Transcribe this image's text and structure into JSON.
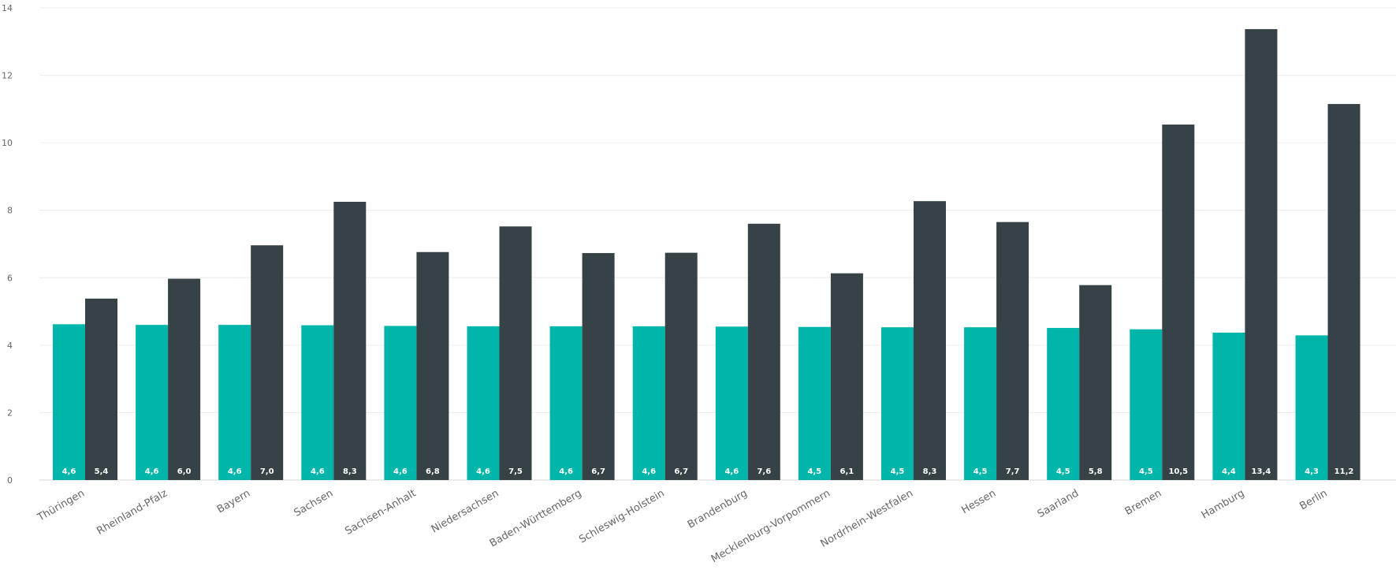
{
  "chart_data": {
    "type": "bar",
    "title": "",
    "xlabel": "",
    "ylabel": "",
    "ylim": [
      0,
      14
    ],
    "yticks": [
      "0",
      "2",
      "4",
      "6",
      "8",
      "10",
      "12",
      "14"
    ],
    "grid": true,
    "legend": "none",
    "categories": [
      "Thüringen",
      "Rheinland-Pfalz",
      "Bayern",
      "Sachsen",
      "Sachsen-Anhalt",
      "Niedersachsen",
      "Baden-Württemberg",
      "Schleswig-Holstein",
      "Brandenburg",
      "Mecklenburg-Vorpommern",
      "Nordrhein-Westfalen",
      "Hessen",
      "Saarland",
      "Bremen",
      "Hamburg",
      "Berlin"
    ],
    "series": [
      {
        "color": "#00b5a9",
        "values": [
          4.62,
          4.6,
          4.6,
          4.59,
          4.57,
          4.56,
          4.56,
          4.56,
          4.55,
          4.54,
          4.53,
          4.53,
          4.51,
          4.47,
          4.37,
          4.29
        ],
        "labels": [
          "4,6",
          "4,6",
          "4,6",
          "4,6",
          "4,6",
          "4,6",
          "4,6",
          "4,6",
          "4,6",
          "4,5",
          "4,5",
          "4,5",
          "4,5",
          "4,5",
          "4,4",
          "4,3"
        ]
      },
      {
        "color": "#364245",
        "values": [
          5.38,
          5.97,
          6.96,
          8.25,
          6.76,
          7.52,
          6.73,
          6.74,
          7.6,
          6.13,
          8.27,
          7.65,
          5.78,
          10.54,
          13.37,
          11.15
        ],
        "labels": [
          "5,4",
          "6,0",
          "7,0",
          "8,3",
          "6,8",
          "7,5",
          "6,7",
          "6,7",
          "7,6",
          "6,1",
          "8,3",
          "7,7",
          "5,8",
          "10,5",
          "13,4",
          "11,2"
        ]
      }
    ]
  }
}
